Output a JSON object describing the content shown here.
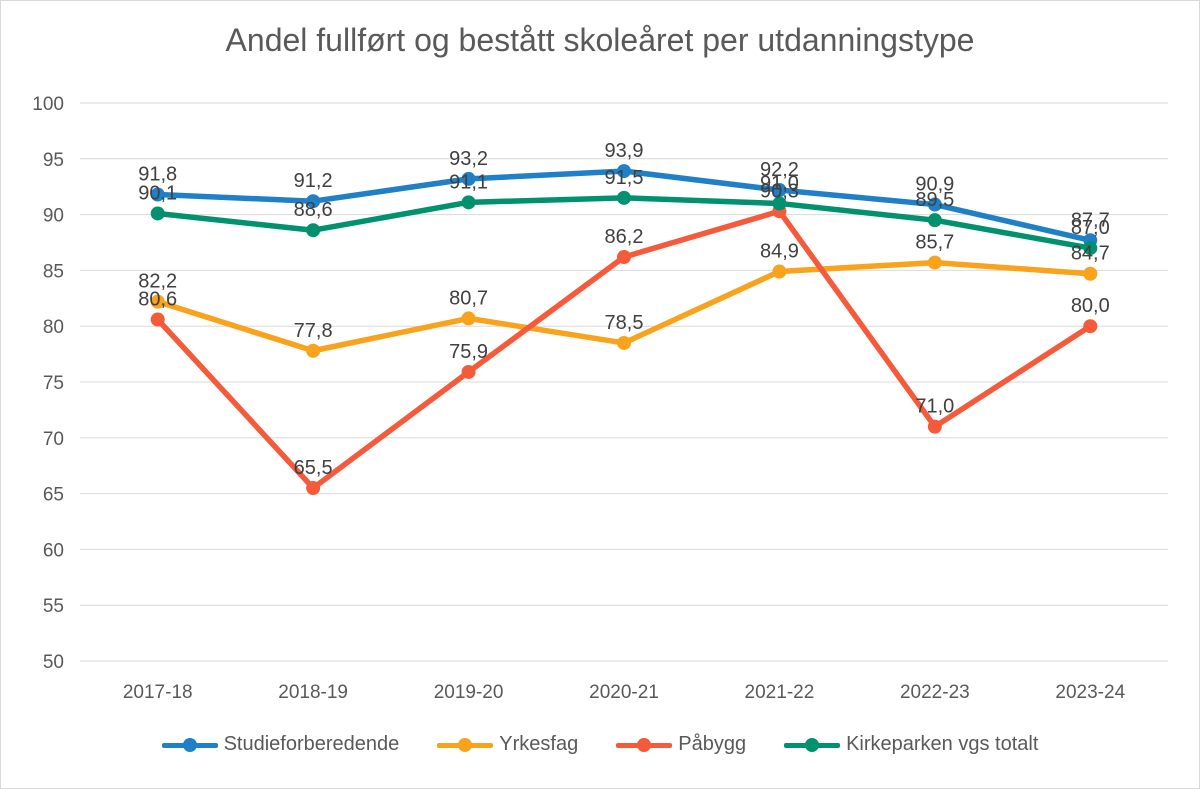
{
  "chart_data": {
    "type": "line",
    "title": "Andel fullført og bestått skoleåret per utdanningstype",
    "categories": [
      "2017-18",
      "2018-19",
      "2019-20",
      "2020-21",
      "2021-22",
      "2022-23",
      "2023-24"
    ],
    "ylim": [
      50,
      100
    ],
    "yticks": [
      50,
      55,
      60,
      65,
      70,
      75,
      80,
      85,
      90,
      95,
      100
    ],
    "grid": true,
    "legend_position": "bottom",
    "series": [
      {
        "name": "Studieforberedende",
        "color": "#1f80c8",
        "values": [
          91.8,
          91.2,
          93.2,
          93.9,
          92.2,
          90.9,
          87.7
        ],
        "labels": [
          "91,8",
          "91,2",
          "93,2",
          "93,9",
          "92,2",
          "90,9",
          "87,7"
        ]
      },
      {
        "name": "Yrkesfag",
        "color": "#f9a21b",
        "values": [
          82.2,
          77.8,
          80.7,
          78.5,
          84.9,
          85.7,
          84.7
        ],
        "labels": [
          "82,2",
          "77,8",
          "80,7",
          "78,5",
          "84,9",
          "85,7",
          "84,7"
        ]
      },
      {
        "name": "Påbygg",
        "color": "#f55a3b",
        "values": [
          80.6,
          65.5,
          75.9,
          86.2,
          90.3,
          71.0,
          80.0
        ],
        "labels": [
          "80,6",
          "65,5",
          "75,9",
          "86,2",
          "90,3",
          "71,0",
          "80,0"
        ]
      },
      {
        "name": "Kirkeparken vgs totalt",
        "color": "#00916e",
        "values": [
          90.1,
          88.6,
          91.1,
          91.5,
          91.0,
          89.5,
          87.0
        ],
        "labels": [
          "90,1",
          "88,6",
          "91,1",
          "91,5",
          "91,0",
          "89,5",
          "87,0"
        ]
      }
    ]
  }
}
